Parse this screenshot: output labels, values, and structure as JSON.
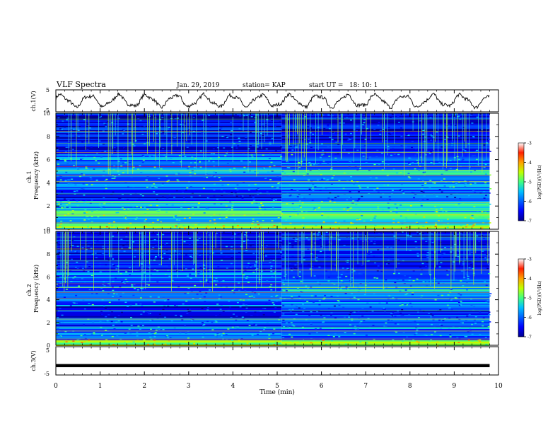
{
  "header": {
    "title": "VLF Spectra",
    "date": "Jan. 29, 2019",
    "station": "station= KAP",
    "start_time": "start UT =   18: 10: 1"
  },
  "panels": {
    "ch1_wave": {
      "ylabel": "ch.1(V)",
      "ticks": [
        "5",
        "-5"
      ]
    },
    "ch1_spec": {
      "ylabel": "ch.1\nFrequency (kHz)",
      "ticks": [
        "10",
        "8",
        "6",
        "4",
        "2",
        "0"
      ]
    },
    "ch2_spec": {
      "ylabel": "ch.2\nFrequency (kHz)",
      "ticks": [
        "10",
        "8",
        "6",
        "4",
        "2",
        "0"
      ]
    },
    "ch3_wave": {
      "ylabel": "ch.3(V)",
      "ticks": [
        "5",
        "-5"
      ]
    }
  },
  "xaxis": {
    "label": "Time (min)",
    "ticks": [
      "0",
      "1",
      "2",
      "3",
      "4",
      "5",
      "6",
      "7",
      "8",
      "9",
      "10"
    ]
  },
  "colorbar": {
    "label": "log(PSD)(V²/Hz)",
    "ticks": [
      "-3",
      "-4",
      "-5",
      "-6",
      "-7"
    ]
  },
  "chart_data": {
    "type": "heatmap",
    "title": "VLF Spectra",
    "xlabel": "Time (min)",
    "xlim": [
      0,
      10
    ],
    "data_extent_x": [
      0,
      9.8
    ],
    "colorscale": {
      "range": [
        -7,
        -3
      ],
      "colors": [
        "#00008f",
        "#0000ff",
        "#0080ff",
        "#00ffff",
        "#80ff80",
        "#ffff00",
        "#ff8000",
        "#ff0000",
        "#800000"
      ]
    },
    "panels": [
      {
        "name": "ch.1(V)",
        "type": "line",
        "ylim": [
          -5,
          5
        ],
        "description_values": {
          "mean": 0,
          "amplitude": 2.5
        }
      },
      {
        "name": "ch.1",
        "type": "heatmap",
        "ylabel": "Frequency (kHz)",
        "ylim": [
          0,
          10
        ],
        "bands_khz": [
          {
            "range": [
              0,
              0.5
            ],
            "level": -4.8
          },
          {
            "range": [
              0.5,
              1.8
            ],
            "level": -5.3
          },
          {
            "range": [
              1.8,
              2.5
            ],
            "level": -5.6
          },
          {
            "range": [
              2.5,
              3.5
            ],
            "level": -6.6
          },
          {
            "range": [
              3.5,
              5.2
            ],
            "level": -5.8
          },
          {
            "range": [
              5.2,
              6.5
            ],
            "level": -5.9
          },
          {
            "range": [
              6.5,
              10
            ],
            "level": -6.5
          }
        ],
        "change_time_min": 5.1
      },
      {
        "name": "ch.2",
        "type": "heatmap",
        "ylabel": "Frequency (kHz)",
        "ylim": [
          0,
          10
        ],
        "bands_khz": [
          {
            "range": [
              0,
              0.5
            ],
            "level": -4.8
          },
          {
            "range": [
              0.5,
              1.8
            ],
            "level": -5.9
          },
          {
            "range": [
              1.8,
              2.5
            ],
            "level": -6.2
          },
          {
            "range": [
              2.5,
              3.5
            ],
            "level": -6.7
          },
          {
            "range": [
              3.5,
              5.2
            ],
            "level": -6.0
          },
          {
            "range": [
              5.2,
              6.5
            ],
            "level": -6.0
          },
          {
            "range": [
              6.5,
              10
            ],
            "level": -6.5
          }
        ],
        "change_time_min": 5.1
      },
      {
        "name": "ch.3(V)",
        "type": "line",
        "ylim": [
          -5,
          5
        ],
        "values_constant": -1.7
      }
    ]
  }
}
